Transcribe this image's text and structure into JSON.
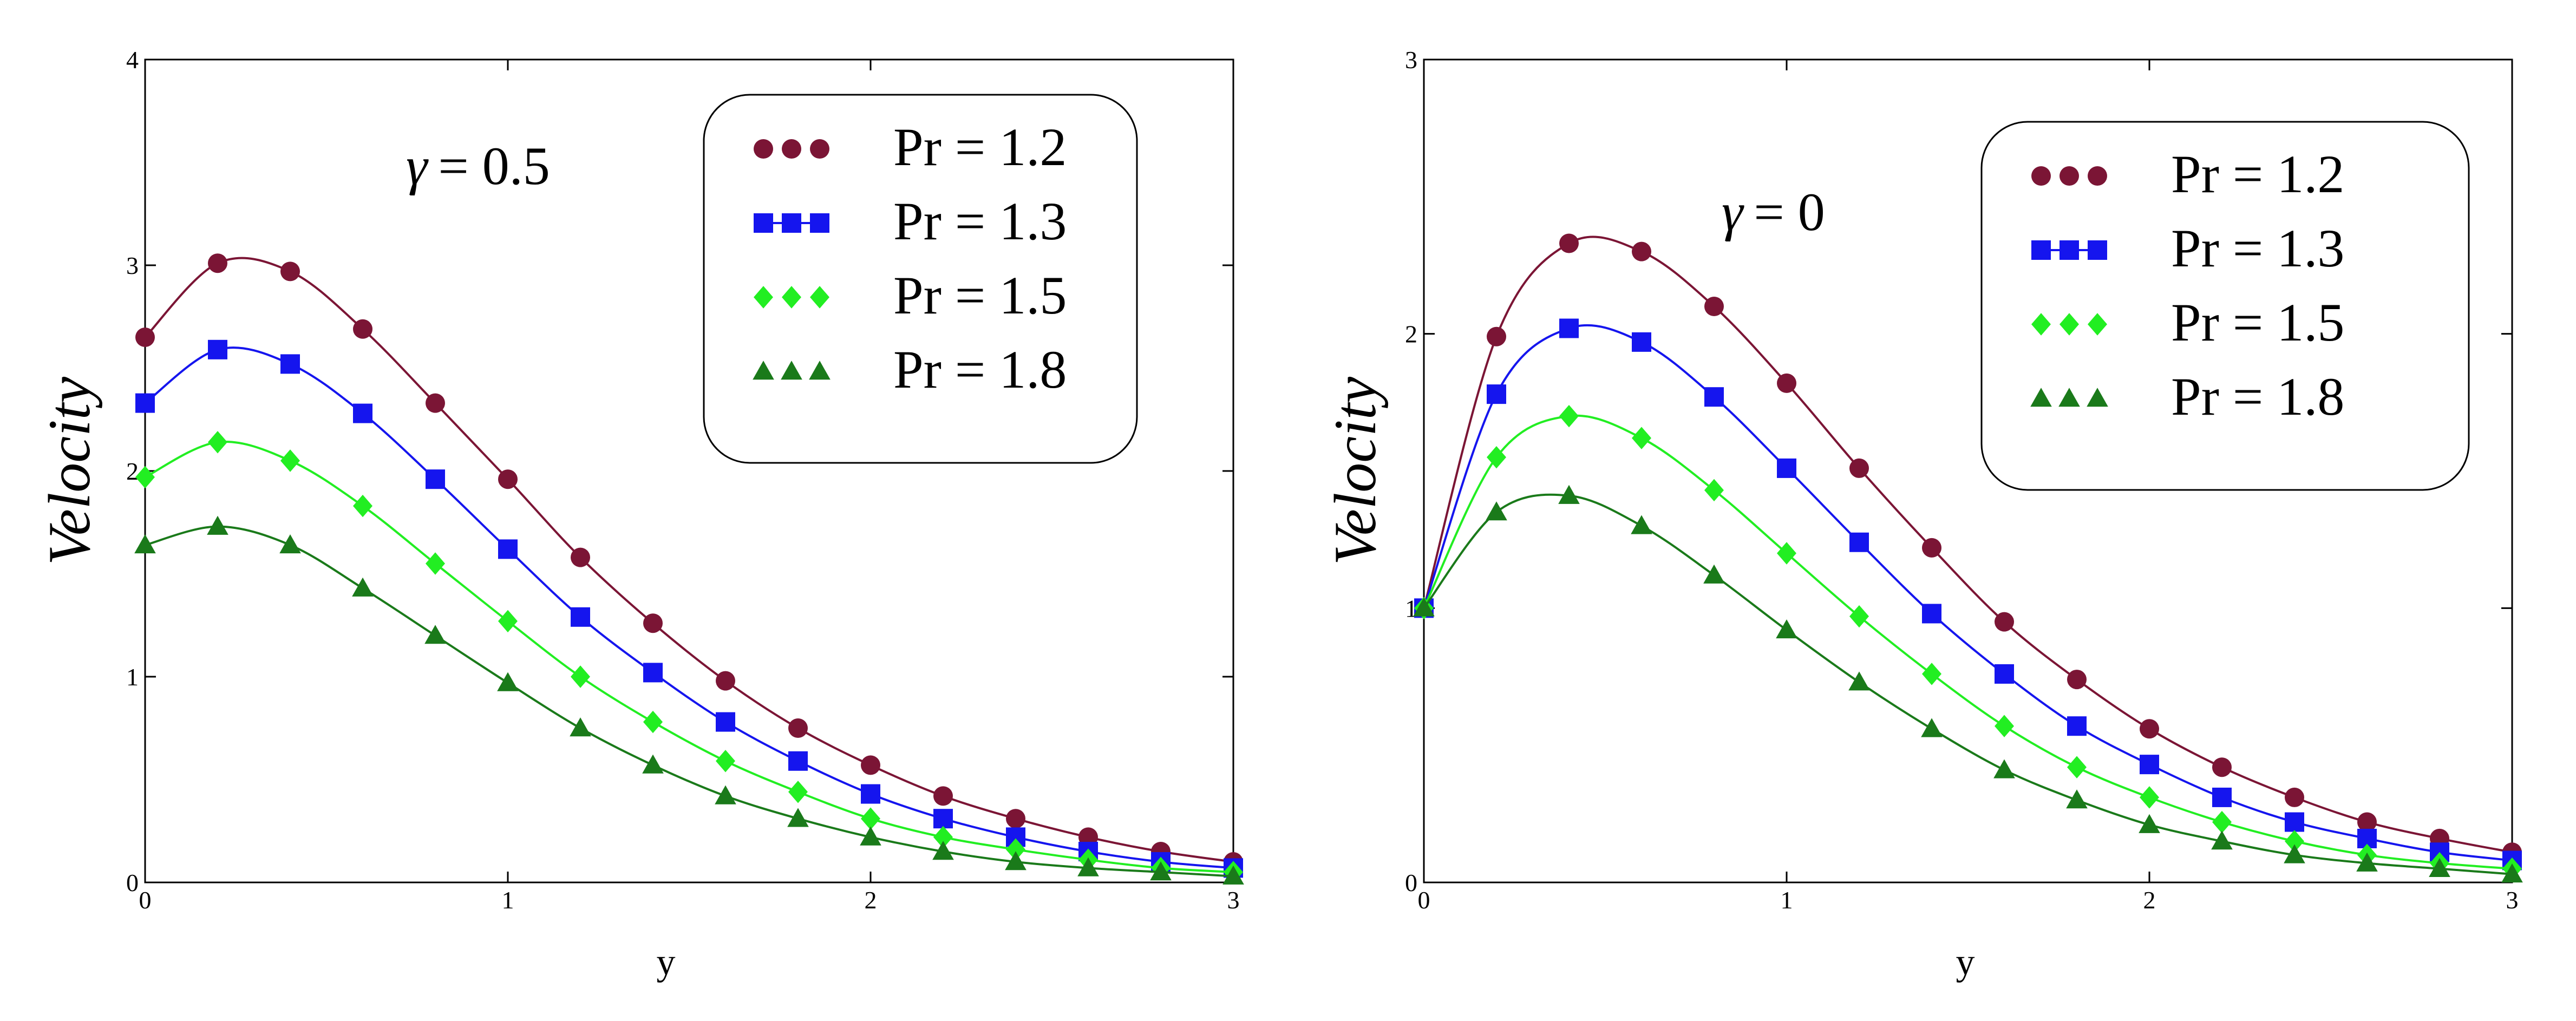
{
  "chart_data": [
    {
      "type": "line",
      "title": "",
      "annotation": {
        "symbol": "γ",
        "text": "= 0.5"
      },
      "xlabel": "y",
      "ylabel": "Velocity",
      "xlim": [
        0,
        3
      ],
      "ylim": [
        0,
        4
      ],
      "xticks": [
        "0",
        "1",
        "2",
        "3"
      ],
      "yticks": [
        "0",
        "1",
        "2",
        "3",
        "4"
      ],
      "grid": false,
      "legend": "top-right",
      "x": [
        0,
        0.2,
        0.4,
        0.6,
        0.8,
        1.0,
        1.2,
        1.4,
        1.6,
        1.8,
        2.0,
        2.2,
        2.4,
        2.6,
        2.8,
        3.0
      ],
      "series": [
        {
          "name": "Pr = 1.2",
          "color": "#7b1535",
          "marker": "circle",
          "values": [
            2.65,
            3.01,
            2.97,
            2.69,
            2.33,
            1.96,
            1.58,
            1.26,
            0.98,
            0.75,
            0.57,
            0.42,
            0.31,
            0.22,
            0.15,
            0.1
          ]
        },
        {
          "name": "Pr = 1.3",
          "color": "#1515ee",
          "marker": "square",
          "values": [
            2.33,
            2.59,
            2.52,
            2.28,
            1.96,
            1.62,
            1.29,
            1.02,
            0.78,
            0.59,
            0.43,
            0.31,
            0.22,
            0.15,
            0.1,
            0.07
          ]
        },
        {
          "name": "Pr = 1.5",
          "color": "#22ee22",
          "marker": "diamond",
          "values": [
            1.97,
            2.14,
            2.05,
            1.83,
            1.55,
            1.27,
            1.0,
            0.78,
            0.59,
            0.44,
            0.31,
            0.22,
            0.16,
            0.11,
            0.07,
            0.05
          ]
        },
        {
          "name": "Pr = 1.8",
          "color": "#1a7a1a",
          "marker": "triangle",
          "values": [
            1.64,
            1.73,
            1.64,
            1.43,
            1.2,
            0.97,
            0.75,
            0.57,
            0.42,
            0.31,
            0.22,
            0.15,
            0.1,
            0.07,
            0.05,
            0.03
          ]
        }
      ]
    },
    {
      "type": "line",
      "title": "",
      "annotation": {
        "symbol": "γ",
        "text": "= 0"
      },
      "xlabel": "y",
      "ylabel": "Velocity",
      "xlim": [
        0,
        3
      ],
      "ylim": [
        0,
        3
      ],
      "xticks": [
        "0",
        "1",
        "2",
        "3"
      ],
      "yticks": [
        "0",
        "1",
        "2",
        "3"
      ],
      "grid": false,
      "legend": "top-right",
      "x": [
        0,
        0.2,
        0.4,
        0.6,
        0.8,
        1.0,
        1.2,
        1.4,
        1.6,
        1.8,
        2.0,
        2.2,
        2.4,
        2.6,
        2.8,
        3.0
      ],
      "series": [
        {
          "name": "Pr = 1.2",
          "color": "#7b1535",
          "marker": "circle",
          "values": [
            1.0,
            1.99,
            2.33,
            2.3,
            2.1,
            1.82,
            1.51,
            1.22,
            0.95,
            0.74,
            0.56,
            0.42,
            0.31,
            0.22,
            0.16,
            0.11
          ]
        },
        {
          "name": "Pr = 1.3",
          "color": "#1515ee",
          "marker": "square",
          "values": [
            1.0,
            1.78,
            2.02,
            1.97,
            1.77,
            1.51,
            1.24,
            0.98,
            0.76,
            0.57,
            0.43,
            0.31,
            0.22,
            0.16,
            0.11,
            0.08
          ]
        },
        {
          "name": "Pr = 1.5",
          "color": "#22ee22",
          "marker": "diamond",
          "values": [
            1.0,
            1.55,
            1.7,
            1.62,
            1.43,
            1.2,
            0.97,
            0.76,
            0.57,
            0.42,
            0.31,
            0.22,
            0.15,
            0.1,
            0.07,
            0.05
          ]
        },
        {
          "name": "Pr = 1.8",
          "color": "#1a7a1a",
          "marker": "triangle",
          "values": [
            1.0,
            1.35,
            1.41,
            1.3,
            1.12,
            0.92,
            0.73,
            0.56,
            0.41,
            0.3,
            0.21,
            0.15,
            0.1,
            0.07,
            0.05,
            0.03
          ]
        }
      ]
    }
  ]
}
